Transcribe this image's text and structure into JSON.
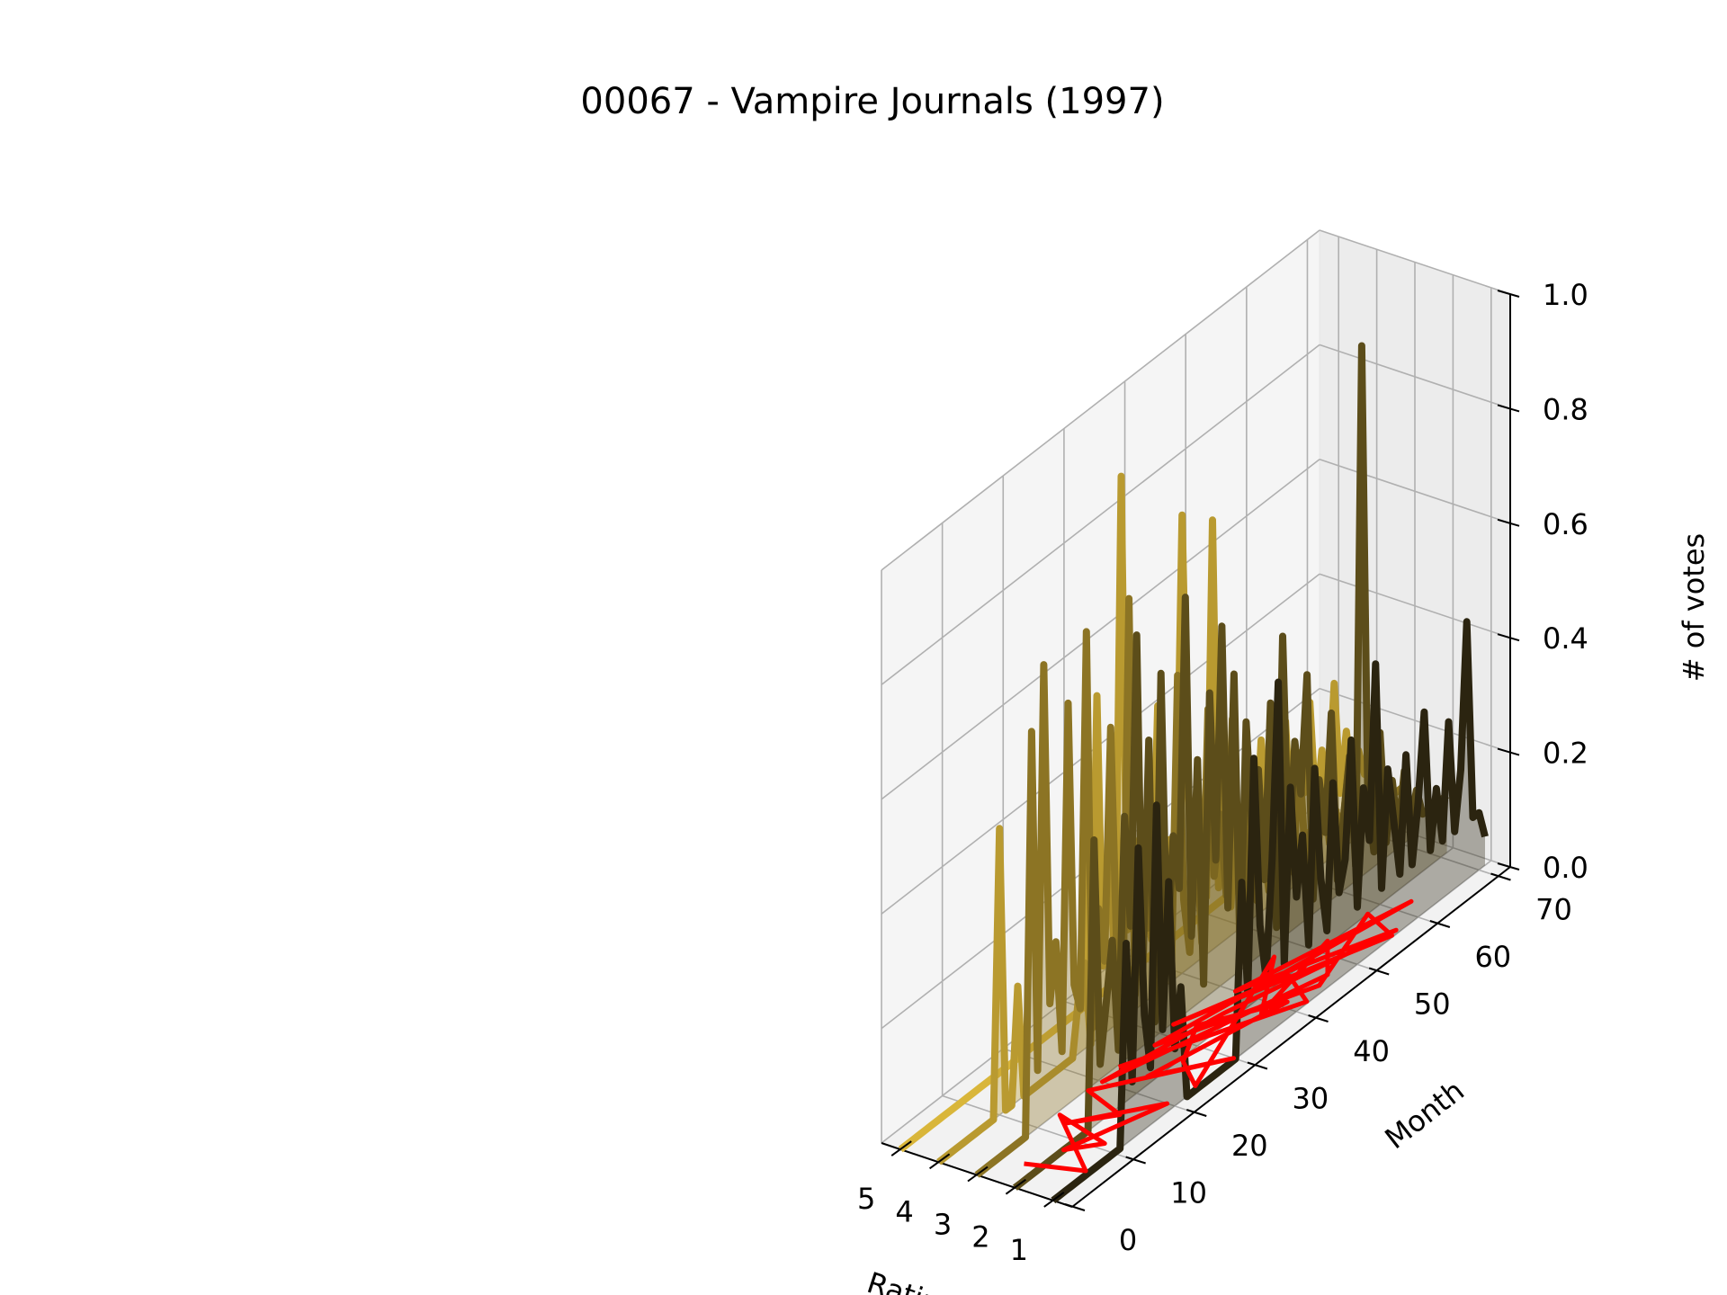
{
  "chart_data": {
    "type": "line",
    "projection": "3d",
    "title": "00067 - Vampire Journals (1997)",
    "xlabel": "Rating",
    "ylabel": "Month",
    "zlabel": "# of votes",
    "x_ticks": [
      "5",
      "4",
      "3",
      "2",
      "1"
    ],
    "y_ticks": [
      "0",
      "10",
      "20",
      "30",
      "40",
      "50",
      "60",
      "70"
    ],
    "z_ticks": [
      "0.0",
      "0.2",
      "0.4",
      "0.6",
      "0.8",
      "1.0"
    ],
    "xlim": [
      0.5,
      5.5
    ],
    "ylim": [
      0,
      72
    ],
    "zlim": [
      0,
      1
    ],
    "grid": true,
    "series": [
      {
        "rating": 5,
        "color": "#d9b63a",
        "values": [
          0,
          0,
          0,
          0,
          0,
          0,
          0,
          0,
          0,
          0,
          0,
          0,
          0,
          0,
          0,
          0,
          0,
          0,
          0,
          0,
          0,
          0,
          0,
          0,
          0,
          0,
          0,
          0,
          0,
          0,
          0,
          0.33,
          0,
          0,
          0,
          0,
          0,
          0,
          0,
          0,
          0,
          0,
          0,
          0,
          0,
          0,
          0,
          0,
          0,
          0,
          0,
          0,
          0,
          0,
          0,
          0,
          0,
          0,
          0,
          0,
          0,
          0,
          0,
          0,
          0,
          0,
          0,
          0,
          0,
          0,
          0,
          0
        ]
      },
      {
        "rating": 4,
        "color": "#b99a30",
        "values": [
          0,
          0,
          0,
          0,
          0,
          0,
          0,
          0,
          0,
          0,
          0.5,
          0,
          0,
          0.2,
          0,
          0,
          0,
          0,
          0,
          0,
          0,
          0,
          0,
          0.1,
          0.15,
          0,
          0.6,
          0.12,
          0.3,
          0.1,
          0.95,
          0.15,
          0.3,
          0.1,
          0.2,
          0.1,
          0.5,
          0.12,
          0.25,
          0.2,
          0.8,
          0.3,
          0.15,
          0.25,
          0.1,
          0.75,
          0.1,
          0.3,
          0.05,
          0.2,
          0.1,
          0.25,
          0.1,
          0.3,
          0.15,
          0.2,
          0.1,
          0.3,
          0.1,
          0.2,
          0.15,
          0.3,
          0.1,
          0.2,
          0.1,
          0.3,
          0.1,
          0.2,
          0.1,
          0.15,
          0.1,
          0.1
        ]
      },
      {
        "rating": 3,
        "color": "#8c7424",
        "values": [
          0,
          0,
          0,
          0,
          0,
          0,
          0,
          0,
          0,
          0.7,
          0.1,
          0.8,
          0.2,
          0.3,
          0.1,
          0.7,
          0.2,
          0.15,
          0.8,
          0.1,
          0.3,
          0.2,
          0.6,
          0.2,
          0.1,
          0.8,
          0.1,
          0.3,
          0.2,
          0.4,
          0.15,
          0.3,
          0.1,
          0.6,
          0.2,
          0.1,
          0.3,
          0.1,
          0.5,
          0.2,
          0.3,
          0.15,
          0.45,
          0.2,
          0.1,
          0.3,
          0.1,
          0.2,
          0.1,
          0.35,
          0.1,
          0.2,
          0.1,
          0.3,
          0.1,
          0.15,
          0.1,
          0.2,
          0.1,
          0.15,
          0.1,
          0.2,
          0.1,
          0.15,
          0.1,
          0.1,
          0.1,
          0.12,
          0.1,
          0.1,
          0.1,
          0.1
        ]
      },
      {
        "rating": 2,
        "color": "#5c4d1a",
        "values": [
          0,
          0,
          0,
          0,
          0,
          0,
          0,
          0,
          0,
          0,
          0,
          0,
          0,
          0.5,
          0.1,
          0.2,
          0.3,
          0.1,
          0.5,
          0.3,
          0.8,
          0.2,
          0.6,
          0.1,
          0.7,
          0.2,
          0.4,
          0.3,
          0.8,
          0.2,
          0.5,
          0.1,
          0.6,
          0.3,
          0.7,
          0.2,
          0.6,
          0.1,
          0.5,
          0.3,
          0.4,
          0.2,
          0.5,
          0.1,
          0.6,
          0.2,
          0.4,
          0.3,
          0.5,
          0.1,
          0.3,
          0.2,
          0.4,
          0.1,
          0.2,
          0.3,
          0.1,
          1.0,
          0.2,
          0.1,
          0.3,
          0.1,
          0.2,
          0.1,
          0.2,
          0.1,
          0.15,
          0.1,
          0.1,
          0.1,
          0.1,
          0.1
        ]
      },
      {
        "rating": 1,
        "color": "#2b2410",
        "values": [
          0,
          0,
          0,
          0,
          0,
          0,
          0,
          0,
          0,
          0,
          0,
          0,
          0.35,
          0.1,
          0.5,
          0.2,
          0.1,
          0.55,
          0.15,
          0.4,
          0.1,
          0.2,
          0,
          0,
          0,
          0,
          0,
          0,
          0,
          0,
          0,
          0.3,
          0.1,
          0.5,
          0.2,
          0.1,
          0.3,
          0.6,
          0.1,
          0.4,
          0.2,
          0.3,
          0.1,
          0.4,
          0.2,
          0.1,
          0.35,
          0.15,
          0.2,
          0.4,
          0.1,
          0.3,
          0.2,
          0.5,
          0.1,
          0.3,
          0.2,
          0.1,
          0.3,
          0.1,
          0.2,
          0.35,
          0.1,
          0.2,
          0.1,
          0.3,
          0.1,
          0.2,
          0.45,
          0.1,
          0.1,
          0.05
        ]
      }
    ],
    "overlay_line": {
      "color": "#ff0000",
      "points": [
        [
          2.95,
          23,
          0
        ],
        [
          1.05,
          42,
          0
        ],
        [
          2.0,
          45,
          0
        ],
        [
          2.95,
          32,
          0
        ],
        [
          1.05,
          56,
          0
        ],
        [
          2.0,
          58,
          0
        ],
        [
          1.2,
          45,
          0
        ],
        [
          2.8,
          28,
          0
        ],
        [
          1.5,
          62,
          0
        ],
        [
          2.6,
          40,
          0
        ],
        [
          1.1,
          57,
          0
        ],
        [
          2.3,
          36,
          0
        ],
        [
          2.9,
          20,
          0
        ],
        [
          1.3,
          47,
          0
        ],
        [
          2.1,
          52,
          0
        ],
        [
          1.6,
          38,
          0
        ],
        [
          2.7,
          47,
          0
        ],
        [
          1.1,
          24,
          0
        ],
        [
          1.9,
          27,
          0
        ],
        [
          2.5,
          33,
          0
        ],
        [
          1.4,
          41,
          0
        ],
        [
          2.2,
          23,
          0
        ],
        [
          1.05,
          30,
          0
        ],
        [
          2.95,
          18,
          0
        ],
        [
          1.8,
          16,
          0
        ],
        [
          2.6,
          12,
          0
        ],
        [
          1.2,
          20,
          0
        ],
        [
          2.0,
          8,
          0
        ],
        [
          1.4,
          11,
          0
        ],
        [
          2.9,
          13,
          0
        ],
        [
          1.1,
          6,
          0
        ],
        [
          2.4,
          4,
          0
        ]
      ]
    }
  }
}
